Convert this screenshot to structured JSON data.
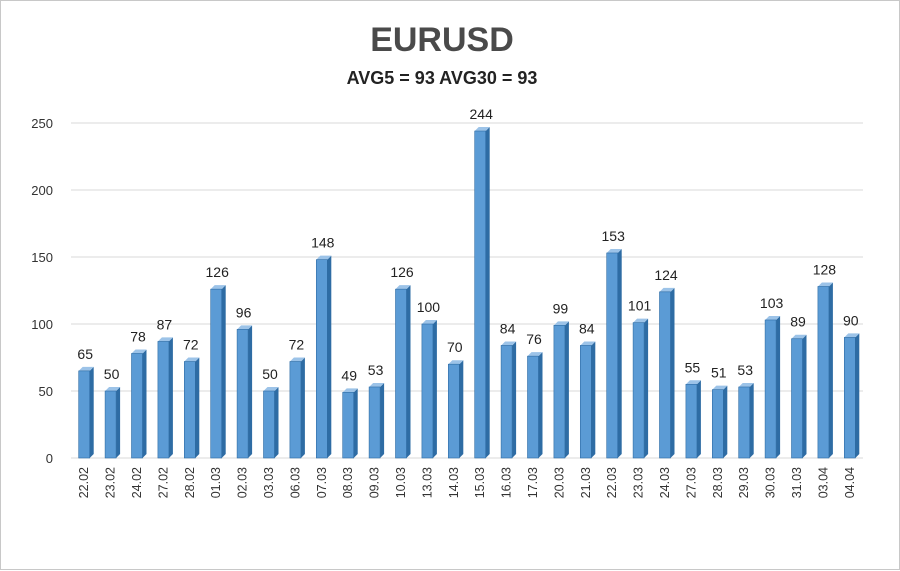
{
  "chart_data": {
    "type": "bar",
    "title": "EURUSD",
    "subtitle": "AVG5 = 93 AVG30 = 93",
    "xlabel": "",
    "ylabel": "",
    "ylim": [
      0,
      250
    ],
    "yticks": [
      0,
      50,
      100,
      150,
      200,
      250
    ],
    "grid": true,
    "legend": "none",
    "colors": {
      "bar": "#5b9bd5",
      "bar_light": "#9cc3e8",
      "bar_dark": "#2e6ca4",
      "grid": "#d9d9d9"
    },
    "categories": [
      "22.02",
      "23.02",
      "24.02",
      "27.02",
      "28.02",
      "01.03",
      "02.03",
      "03.03",
      "06.03",
      "07.03",
      "08.03",
      "09.03",
      "10.03",
      "13.03",
      "14.03",
      "15.03",
      "16.03",
      "17.03",
      "20.03",
      "21.03",
      "22.03",
      "23.03",
      "24.03",
      "27.03",
      "28.03",
      "29.03",
      "30.03",
      "31.03",
      "03.04",
      "04.04"
    ],
    "values": [
      65,
      50,
      78,
      87,
      72,
      126,
      96,
      50,
      72,
      148,
      49,
      53,
      126,
      100,
      70,
      244,
      84,
      76,
      99,
      84,
      153,
      101,
      124,
      55,
      51,
      53,
      103,
      89,
      128,
      90
    ]
  }
}
